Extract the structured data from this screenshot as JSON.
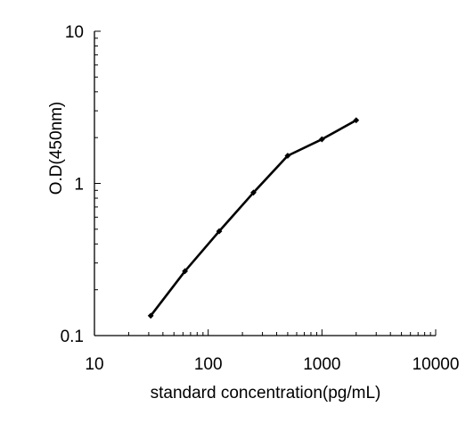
{
  "chart_data": {
    "type": "line",
    "title": "",
    "xlabel": "standard concentration(pg/mL)",
    "ylabel": "O.D(450nm)",
    "x_scale": "log",
    "y_scale": "log",
    "xlim": [
      10,
      10000
    ],
    "ylim": [
      0.1,
      10
    ],
    "x_ticks": [
      10,
      100,
      1000,
      10000
    ],
    "x_tick_labels": [
      "10",
      "100",
      "1000",
      "10000"
    ],
    "y_ticks": [
      0.1,
      1,
      10
    ],
    "y_tick_labels": [
      "0.1",
      "1",
      "10"
    ],
    "grid": false,
    "legend": "none",
    "series": [
      {
        "color": "#000000",
        "marker": "diamond",
        "x": [
          31.25,
          62.5,
          125,
          250,
          500,
          1000,
          2000
        ],
        "y": [
          0.135,
          0.265,
          0.485,
          0.87,
          1.52,
          1.95,
          2.6
        ]
      }
    ]
  }
}
